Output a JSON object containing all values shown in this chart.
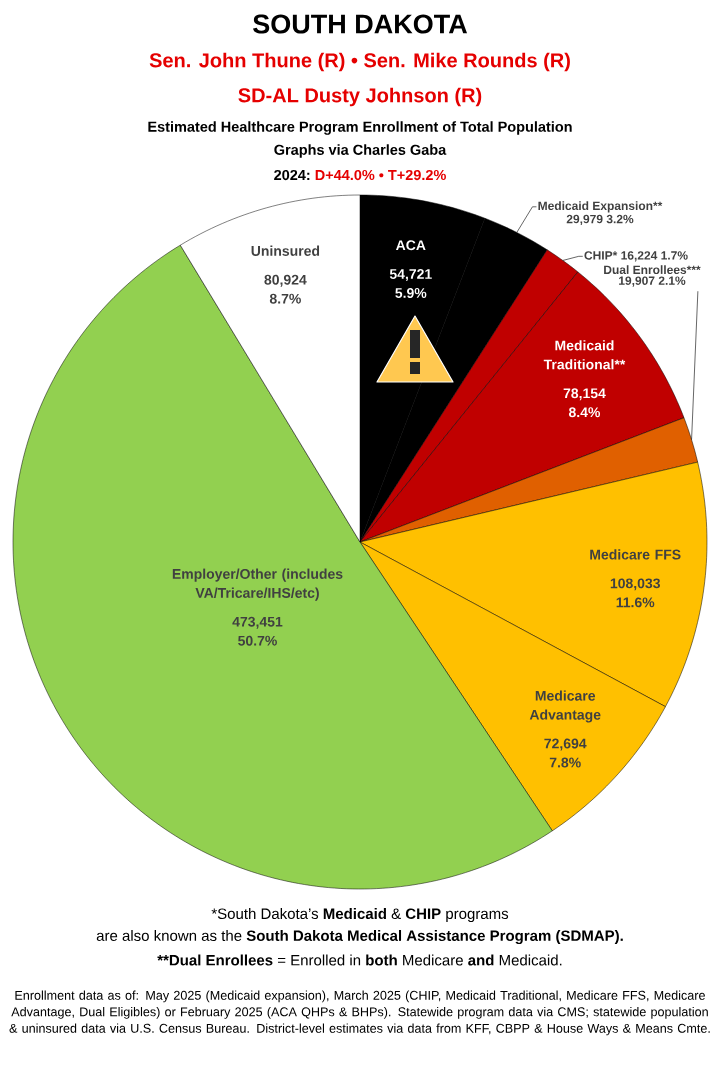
{
  "chart_data": {
    "type": "pie",
    "title": "SOUTH DAKOTA",
    "subtitle": "Estimated Healthcare Program Enrollment of Total Population",
    "categories": [
      "ACA",
      "Medicaid Expansion**",
      "CHIP*",
      "Medicaid Traditional**",
      "Dual Enrollees***",
      "Medicare FFS",
      "Medicare Advantage",
      "Employer/Other (includes VA/Tricare/IHS/etc)",
      "Uninsured"
    ],
    "values": [
      54721,
      29979,
      16224,
      78154,
      19907,
      108033,
      72694,
      473451,
      80924
    ],
    "value_labels": [
      "54,721 5.9%",
      "29,979 3.2%",
      "16,224 1.7%",
      "78,154 8.4%",
      "19,907 2.1%",
      "108,033 11.6%",
      "72,694 7.8%",
      "473,451 50.7%",
      "80,924 8.7%"
    ],
    "colors": [
      "#000000",
      "#000000",
      "#c00000",
      "#c00000",
      "#e06000",
      "#ffc000",
      "#ffc000",
      "#92d050",
      "#ffffff"
    ],
    "annotations": [
      "Sen. John Thune (R) • Sen. Mike Rounds (R)",
      "SD-AL Dusty Johnson (R)",
      "Graphs via Charles Gaba",
      "2024:",
      "D+44.0% • T+29.2%",
      "*South Dakota’s **Medicaid** & **CHIP** programs",
      "are also known as the **South Dakota Medical Assistance Program (SDMAP).**",
      "**Dual Enrollees",
      "= Enrolled in **both** Medicare **and** Medicaid.",
      "Enrollment data as of: May 2025 (Medicaid expansion), March 2025 (CHIP, Medicaid Traditional, Medicare FFS, Medicare Advantage, Dual Eligibles) or February 2025 (ACA QHPs & BHPs). Statewide program data via CMS; statewide population & uninsured data via U.S. Census Bureau. District-level estimates via data from KFF, CBPP & House Ways & Means Cmte."
    ]
  }
}
